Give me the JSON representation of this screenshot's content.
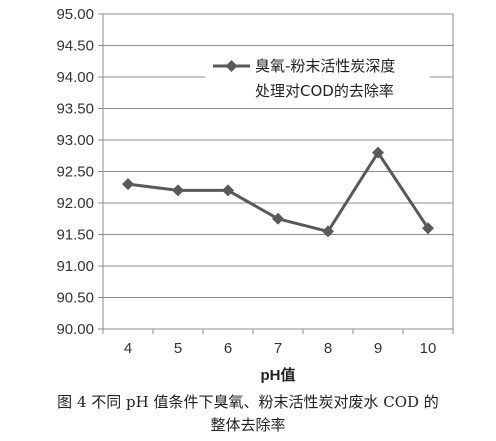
{
  "chart_data": {
    "type": "line",
    "title": "",
    "xlabel": "pH值",
    "ylabel": "",
    "categories": [
      "4",
      "5",
      "6",
      "7",
      "8",
      "9",
      "10"
    ],
    "ylim": [
      90.0,
      95.0
    ],
    "yticks": [
      "90.00",
      "90.50",
      "91.00",
      "91.50",
      "92.00",
      "92.50",
      "93.00",
      "93.50",
      "94.00",
      "94.50",
      "95.00"
    ],
    "grid": true,
    "legend_position": "top-right",
    "series": [
      {
        "name_lines": [
          "臭氧-粉末活性炭深度",
          "处理对COD的去除率"
        ],
        "values": [
          92.3,
          92.2,
          92.2,
          91.75,
          91.55,
          92.8,
          91.6
        ],
        "color": "#595959"
      }
    ]
  },
  "caption": {
    "line1": "图 4   不同 pH 值条件下臭氧、粉末活性炭对废水 COD 的",
    "line2": "整体去除率"
  }
}
